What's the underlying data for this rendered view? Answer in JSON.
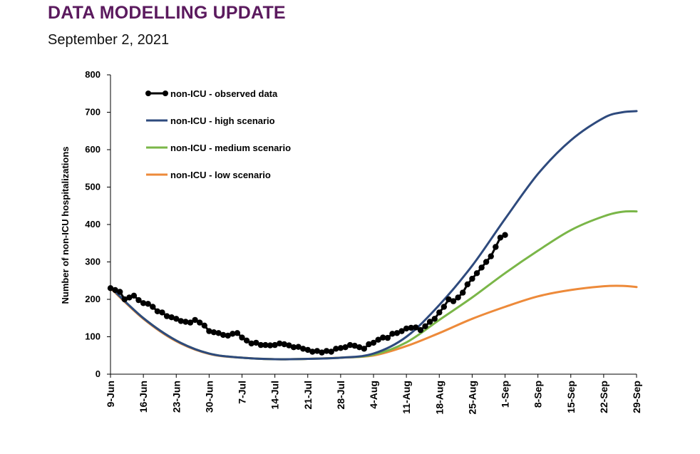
{
  "header": {
    "title": "DATA MODELLING UPDATE",
    "subtitle": "September 2, 2021"
  },
  "chart_data": {
    "type": "line",
    "title": "",
    "xlabel": "",
    "ylabel": "Number of non-ICU hospitalizations",
    "ylim": [
      0,
      800
    ],
    "yticks": [
      0,
      100,
      200,
      300,
      400,
      500,
      600,
      700,
      800
    ],
    "xticks": [
      "9-Jun",
      "16-Jun",
      "23-Jun",
      "30-Jun",
      "7-Jul",
      "14-Jul",
      "21-Jul",
      "28-Jul",
      "4-Aug",
      "11-Aug",
      "18-Aug",
      "25-Aug",
      "1-Sep",
      "8-Sep",
      "15-Sep",
      "22-Sep",
      "29-Sep"
    ],
    "x_start": "2021-06-09",
    "x_end": "2021-09-29",
    "grid": false,
    "legend_position": "top-left",
    "series": [
      {
        "name": "non-ICU - observed data",
        "color": "#000000",
        "marker": "circle",
        "points": [
          [
            "2021-06-09",
            230
          ],
          [
            "2021-06-10",
            225
          ],
          [
            "2021-06-11",
            220
          ],
          [
            "2021-06-12",
            200
          ],
          [
            "2021-06-13",
            205
          ],
          [
            "2021-06-14",
            210
          ],
          [
            "2021-06-15",
            198
          ],
          [
            "2021-06-16",
            190
          ],
          [
            "2021-06-17",
            188
          ],
          [
            "2021-06-18",
            180
          ],
          [
            "2021-06-19",
            168
          ],
          [
            "2021-06-20",
            165
          ],
          [
            "2021-06-21",
            155
          ],
          [
            "2021-06-22",
            152
          ],
          [
            "2021-06-23",
            148
          ],
          [
            "2021-06-24",
            142
          ],
          [
            "2021-06-25",
            140
          ],
          [
            "2021-06-26",
            138
          ],
          [
            "2021-06-27",
            145
          ],
          [
            "2021-06-28",
            138
          ],
          [
            "2021-06-29",
            130
          ],
          [
            "2021-06-30",
            115
          ],
          [
            "2021-07-01",
            112
          ],
          [
            "2021-07-02",
            110
          ],
          [
            "2021-07-03",
            105
          ],
          [
            "2021-07-04",
            103
          ],
          [
            "2021-07-05",
            108
          ],
          [
            "2021-07-06",
            110
          ],
          [
            "2021-07-07",
            98
          ],
          [
            "2021-07-08",
            90
          ],
          [
            "2021-07-09",
            82
          ],
          [
            "2021-07-10",
            84
          ],
          [
            "2021-07-11",
            78
          ],
          [
            "2021-07-12",
            78
          ],
          [
            "2021-07-13",
            77
          ],
          [
            "2021-07-14",
            78
          ],
          [
            "2021-07-15",
            82
          ],
          [
            "2021-07-16",
            80
          ],
          [
            "2021-07-17",
            77
          ],
          [
            "2021-07-18",
            72
          ],
          [
            "2021-07-19",
            73
          ],
          [
            "2021-07-20",
            68
          ],
          [
            "2021-07-21",
            65
          ],
          [
            "2021-07-22",
            60
          ],
          [
            "2021-07-23",
            62
          ],
          [
            "2021-07-24",
            58
          ],
          [
            "2021-07-25",
            62
          ],
          [
            "2021-07-26",
            60
          ],
          [
            "2021-07-27",
            68
          ],
          [
            "2021-07-28",
            70
          ],
          [
            "2021-07-29",
            72
          ],
          [
            "2021-07-30",
            78
          ],
          [
            "2021-07-31",
            76
          ],
          [
            "2021-08-01",
            72
          ],
          [
            "2021-08-02",
            68
          ],
          [
            "2021-08-03",
            80
          ],
          [
            "2021-08-04",
            84
          ],
          [
            "2021-08-05",
            92
          ],
          [
            "2021-08-06",
            98
          ],
          [
            "2021-08-07",
            97
          ],
          [
            "2021-08-08",
            108
          ],
          [
            "2021-08-09",
            110
          ],
          [
            "2021-08-10",
            115
          ],
          [
            "2021-08-11",
            122
          ],
          [
            "2021-08-12",
            124
          ],
          [
            "2021-08-13",
            125
          ],
          [
            "2021-08-14",
            118
          ],
          [
            "2021-08-15",
            128
          ],
          [
            "2021-08-16",
            140
          ],
          [
            "2021-08-17",
            148
          ],
          [
            "2021-08-18",
            165
          ],
          [
            "2021-08-19",
            180
          ],
          [
            "2021-08-20",
            200
          ],
          [
            "2021-08-21",
            195
          ],
          [
            "2021-08-22",
            205
          ],
          [
            "2021-08-23",
            218
          ],
          [
            "2021-08-24",
            240
          ],
          [
            "2021-08-25",
            255
          ],
          [
            "2021-08-26",
            270
          ],
          [
            "2021-08-27",
            285
          ],
          [
            "2021-08-28",
            300
          ],
          [
            "2021-08-29",
            315
          ],
          [
            "2021-08-30",
            340
          ],
          [
            "2021-08-31",
            365
          ],
          [
            "2021-09-01",
            372
          ]
        ]
      },
      {
        "name": "non-ICU - high scenario",
        "color": "#2e4a7d",
        "marker": "none",
        "points": [
          [
            "2021-06-09",
            232
          ],
          [
            "2021-06-16",
            150
          ],
          [
            "2021-06-23",
            90
          ],
          [
            "2021-06-30",
            55
          ],
          [
            "2021-07-07",
            44
          ],
          [
            "2021-07-14",
            40
          ],
          [
            "2021-07-21",
            41
          ],
          [
            "2021-07-28",
            44
          ],
          [
            "2021-08-04",
            55
          ],
          [
            "2021-08-11",
            100
          ],
          [
            "2021-08-18",
            185
          ],
          [
            "2021-08-25",
            290
          ],
          [
            "2021-09-01",
            415
          ],
          [
            "2021-09-08",
            535
          ],
          [
            "2021-09-15",
            625
          ],
          [
            "2021-09-22",
            685
          ],
          [
            "2021-09-26",
            700
          ],
          [
            "2021-09-29",
            703
          ]
        ]
      },
      {
        "name": "non-ICU - medium scenario",
        "color": "#7ab648",
        "marker": "none",
        "points": [
          [
            "2021-06-09",
            232
          ],
          [
            "2021-06-16",
            150
          ],
          [
            "2021-06-23",
            90
          ],
          [
            "2021-06-30",
            55
          ],
          [
            "2021-07-07",
            44
          ],
          [
            "2021-07-14",
            40
          ],
          [
            "2021-07-21",
            41
          ],
          [
            "2021-07-28",
            44
          ],
          [
            "2021-08-04",
            52
          ],
          [
            "2021-08-11",
            85
          ],
          [
            "2021-08-18",
            145
          ],
          [
            "2021-08-25",
            205
          ],
          [
            "2021-09-01",
            270
          ],
          [
            "2021-09-08",
            330
          ],
          [
            "2021-09-15",
            385
          ],
          [
            "2021-09-22",
            422
          ],
          [
            "2021-09-26",
            434
          ],
          [
            "2021-09-29",
            435
          ]
        ]
      },
      {
        "name": "non-ICU - low scenario",
        "color": "#ed8a3a",
        "marker": "none",
        "points": [
          [
            "2021-06-09",
            230
          ],
          [
            "2021-06-16",
            148
          ],
          [
            "2021-06-23",
            88
          ],
          [
            "2021-06-30",
            54
          ],
          [
            "2021-07-07",
            44
          ],
          [
            "2021-07-14",
            40
          ],
          [
            "2021-07-21",
            41
          ],
          [
            "2021-07-28",
            44
          ],
          [
            "2021-08-04",
            50
          ],
          [
            "2021-08-11",
            75
          ],
          [
            "2021-08-18",
            110
          ],
          [
            "2021-08-25",
            148
          ],
          [
            "2021-09-01",
            180
          ],
          [
            "2021-09-08",
            208
          ],
          [
            "2021-09-15",
            225
          ],
          [
            "2021-09-22",
            235
          ],
          [
            "2021-09-26",
            236
          ],
          [
            "2021-09-29",
            233
          ]
        ]
      }
    ]
  }
}
